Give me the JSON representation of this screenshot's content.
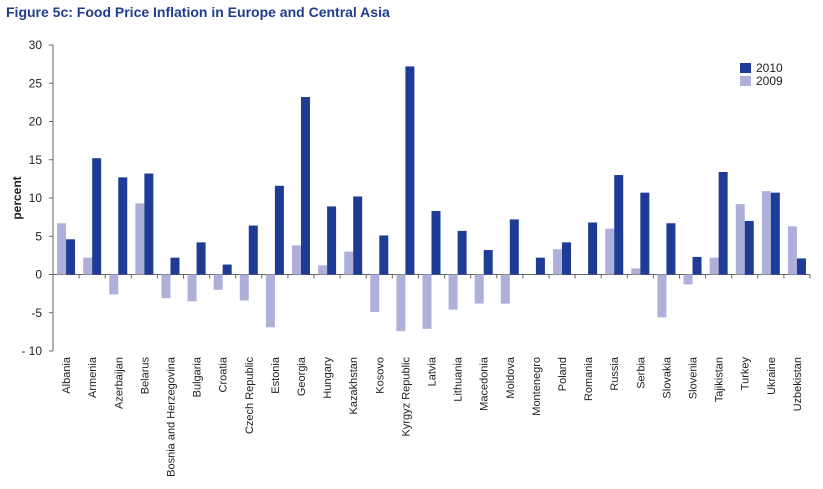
{
  "figure": {
    "title": "Figure 5c: Food Price Inflation in Europe and Central Asia"
  },
  "chart_data": {
    "type": "bar",
    "ylabel": "percent",
    "xlabel": "",
    "ylim": [
      -10,
      30
    ],
    "yticks": [
      -10,
      -5,
      0,
      5,
      10,
      15,
      20,
      25,
      30
    ],
    "ytick_labels": [
      "- 10",
      "-5",
      "0",
      "5",
      "10",
      "15",
      "20",
      "25",
      "30"
    ],
    "grid": false,
    "legend_position": "top-right",
    "categories": [
      "Albania",
      "Armenia",
      "Azerbaijan",
      "Belarus",
      "Bosnia and Herzegovina",
      "Bulgaria",
      "Croatia",
      "Czech Republic",
      "Estonia",
      "Georgia",
      "Hungary",
      "Kazakhstan",
      "Kosovo",
      "Kyrgyz Republic",
      "Latvia",
      "Lithuania",
      "Macedonia",
      "Moldova",
      "Montenegro",
      "Poland",
      "Romania",
      "Russia",
      "Serbia",
      "Slovakia",
      "Slovenia",
      "Tajikistan",
      "Turkey",
      "Ukraine",
      "Uzbekistan"
    ],
    "series": [
      {
        "name": "2009",
        "color": "#aeb0da",
        "values": [
          6.7,
          2.2,
          -2.6,
          9.3,
          -3.1,
          -3.5,
          -2.0,
          -3.4,
          -6.9,
          3.8,
          1.2,
          3.0,
          -4.9,
          -7.4,
          -7.1,
          -4.6,
          -3.8,
          -3.8,
          0,
          3.3,
          0,
          6.0,
          0.8,
          -5.6,
          -1.3,
          2.2,
          9.2,
          10.9,
          6.3
        ]
      },
      {
        "name": "2010",
        "color": "#1e3c96",
        "values": [
          4.6,
          15.2,
          12.7,
          13.2,
          2.2,
          4.2,
          1.3,
          6.4,
          11.6,
          23.2,
          8.9,
          10.2,
          5.1,
          27.2,
          8.3,
          5.7,
          3.2,
          7.2,
          2.2,
          4.2,
          6.8,
          13.0,
          10.7,
          6.7,
          2.3,
          13.4,
          7.0,
          10.7,
          2.1
        ]
      }
    ]
  }
}
